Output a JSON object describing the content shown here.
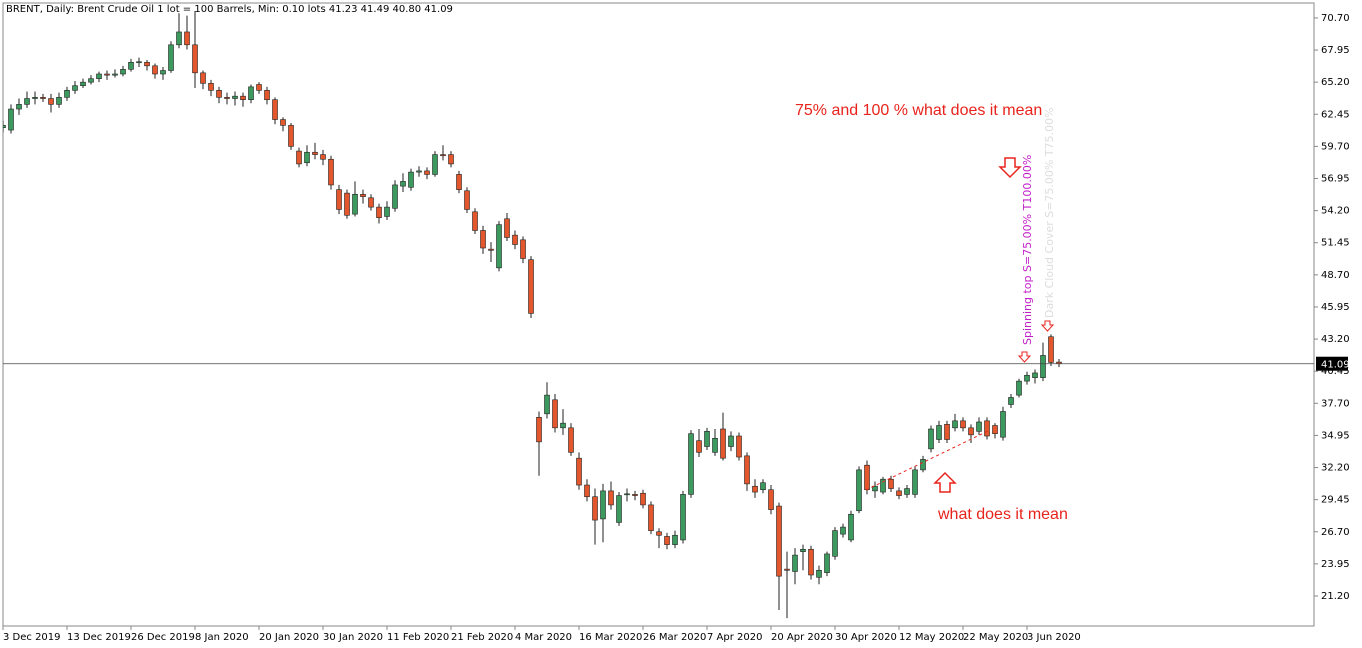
{
  "chart_data": {
    "type": "candlestick",
    "title": "BRENT, Daily:  Brent Crude Oil   1 lot = 100 Barrels, Min: 0.10 lots   41.23 41.49 40.80 41.09",
    "categories": [
      "3 Dec 2019",
      null,
      null,
      null,
      null,
      null,
      null,
      null,
      "13 Dec 2019",
      null,
      null,
      null,
      null,
      null,
      null,
      null,
      "26 Dec 2019",
      null,
      null,
      null,
      null,
      null,
      null,
      null,
      "8 Jan 2020",
      null,
      null,
      null,
      null,
      null,
      null,
      null,
      "20 Jan 2020",
      null,
      null,
      null,
      null,
      null,
      null,
      null,
      "30 Jan 2020",
      null,
      null,
      null,
      null,
      null,
      null,
      null,
      "11 Feb 2020",
      null,
      null,
      null,
      null,
      null,
      null,
      null,
      "21 Feb 2020",
      null,
      null,
      null,
      null,
      null,
      null,
      null,
      "4 Mar 2020",
      null,
      null,
      null,
      null,
      null,
      null,
      null,
      "16 Mar 2020",
      null,
      null,
      null,
      null,
      null,
      null,
      null,
      "26 Mar 2020",
      null,
      null,
      null,
      null,
      null,
      null,
      null,
      "7 Apr 2020",
      null,
      null,
      null,
      null,
      null,
      null,
      null,
      "20 Apr 2020",
      null,
      null,
      null,
      null,
      null,
      null,
      null,
      "30 Apr 2020",
      null,
      null,
      null,
      null,
      null,
      null,
      null,
      "12 May 2020",
      null,
      null,
      null,
      null,
      null,
      null,
      null,
      "22 May 2020",
      null,
      null,
      null,
      null,
      null,
      null,
      null,
      "3 Jun 2020",
      null,
      null,
      null,
      null
    ],
    "open": [
      61.3,
      61.1,
      62.9,
      63.3,
      63.8,
      63.9,
      63.8,
      63.3,
      63.9,
      64.5,
      64.9,
      65.2,
      65.5,
      65.9,
      65.8,
      65.9,
      66.3,
      66.9,
      66.9,
      66.6,
      65.9,
      66.2,
      68.4,
      69.5,
      68.4,
      66.0,
      65.1,
      64.5,
      63.9,
      63.8,
      64.0,
      63.7,
      65.0,
      64.5,
      63.7,
      62.0,
      61.5,
      59.3,
      58.3,
      59.2,
      59.0,
      58.6,
      56.0,
      55.7,
      53.9,
      55.6,
      55.3,
      54.5,
      53.7,
      54.4,
      56.3,
      56.2,
      57.5,
      57.6,
      57.3,
      59.0,
      59.0,
      57.3,
      55.9,
      54.1,
      52.5,
      50.9,
      49.3,
      53.5,
      52.1,
      51.7,
      50.0,
      36.5,
      36.8,
      38.0,
      35.6,
      35.6,
      33.0,
      30.7,
      29.7,
      27.8,
      30.2,
      27.5,
      29.9,
      29.9,
      30.0,
      29.0,
      26.7,
      26.3,
      25.6,
      26.0,
      29.9,
      34.5,
      34.0,
      33.5,
      35.5,
      34.0,
      34.9,
      33.2,
      30.6,
      30.3,
      30.3,
      28.9,
      23.5,
      23.3,
      25.0,
      25.2,
      22.8,
      23.2,
      24.6,
      26.5,
      26.0,
      28.5,
      32.4,
      30.2,
      30.1,
      31.2,
      30.2,
      29.9,
      29.9,
      32.0,
      33.8,
      34.6,
      35.9,
      35.6,
      36.2,
      35.6,
      35.3,
      36.2,
      35.8,
      34.8,
      37.6,
      38.4,
      39.6,
      39.9,
      39.9,
      43.4,
      41.23
    ],
    "high": [
      61.9,
      63.3,
      63.8,
      64.4,
      64.4,
      64.2,
      64.2,
      64.3,
      64.8,
      65.3,
      65.5,
      65.8,
      66.1,
      66.2,
      66.3,
      66.6,
      67.2,
      67.3,
      67.1,
      66.8,
      66.5,
      68.7,
      71.1,
      70.9,
      71.3,
      66.2,
      65.4,
      64.8,
      64.3,
      64.4,
      64.3,
      65.0,
      65.2,
      64.8,
      63.9,
      62.2,
      61.7,
      59.6,
      59.8,
      60.0,
      59.4,
      58.9,
      56.4,
      56.0,
      56.7,
      56.0,
      55.6,
      54.8,
      55.0,
      56.8,
      57.4,
      57.8,
      58.0,
      57.9,
      59.3,
      59.8,
      59.3,
      57.6,
      56.2,
      54.4,
      52.9,
      51.5,
      53.3,
      54.0,
      52.5,
      52.0,
      50.3,
      37.0,
      39.5,
      38.5,
      37.2,
      36.0,
      33.5,
      31.2,
      30.4,
      30.8,
      31.0,
      30.1,
      30.4,
      30.2,
      30.3,
      29.3,
      27.0,
      26.6,
      26.8,
      30.2,
      35.4,
      35.5,
      35.6,
      35.5,
      36.9,
      35.3,
      35.2,
      33.5,
      31.2,
      31.2,
      30.7,
      29.2,
      25.0,
      25.3,
      25.6,
      25.5,
      23.8,
      25.0,
      27.1,
      27.4,
      28.5,
      32.3,
      32.8,
      31.0,
      31.4,
      31.5,
      30.5,
      30.7,
      32.3,
      33.2,
      35.8,
      36.2,
      36.2,
      36.8,
      36.5,
      35.9,
      36.5,
      36.5,
      36.0,
      37.4,
      38.5,
      39.8,
      40.4,
      40.6,
      42.9,
      43.6,
      41.49
    ],
    "low": [
      60.9,
      60.8,
      62.4,
      63.0,
      63.3,
      63.5,
      62.6,
      63.0,
      63.6,
      64.2,
      64.7,
      65.0,
      65.2,
      65.4,
      65.6,
      65.7,
      66.1,
      66.5,
      66.2,
      65.5,
      65.4,
      66.0,
      68.1,
      68.0,
      64.7,
      64.6,
      64.0,
      63.4,
      63.3,
      63.2,
      63.1,
      63.4,
      64.2,
      63.3,
      61.6,
      61.0,
      59.4,
      57.9,
      58.0,
      58.6,
      58.1,
      56.0,
      53.9,
      53.5,
      53.7,
      54.8,
      54.2,
      53.1,
      53.4,
      54.1,
      55.8,
      55.9,
      57.1,
      56.9,
      57.1,
      58.5,
      57.9,
      55.7,
      54.0,
      52.2,
      50.5,
      49.8,
      49.0,
      51.6,
      50.9,
      49.7,
      45.0,
      31.5,
      36.4,
      35.2,
      35.0,
      33.2,
      30.3,
      29.3,
      25.6,
      25.8,
      28.6,
      27.2,
      29.3,
      29.4,
      28.7,
      26.5,
      25.3,
      25.2,
      25.3,
      25.7,
      29.6,
      33.1,
      33.7,
      33.2,
      32.8,
      33.6,
      32.8,
      30.2,
      29.6,
      30.0,
      28.2,
      20.0,
      19.3,
      22.2,
      23.4,
      22.6,
      22.2,
      22.9,
      24.3,
      26.2,
      25.8,
      28.3,
      29.9,
      29.6,
      29.9,
      30.1,
      29.5,
      29.6,
      29.6,
      31.8,
      33.5,
      34.3,
      34.3,
      35.3,
      35.3,
      34.3,
      35.0,
      34.6,
      34.7,
      34.5,
      37.3,
      38.2,
      39.3,
      39.4,
      39.6,
      40.9,
      40.8
    ],
    "close": [
      61.5,
      62.9,
      63.3,
      63.8,
      63.9,
      63.8,
      63.3,
      63.9,
      64.5,
      64.9,
      65.2,
      65.5,
      65.9,
      65.8,
      65.9,
      66.3,
      66.9,
      66.95,
      66.6,
      65.9,
      66.2,
      68.4,
      69.5,
      68.4,
      66.0,
      65.1,
      64.5,
      63.9,
      63.8,
      64.0,
      63.7,
      64.8,
      64.5,
      63.7,
      62.0,
      61.5,
      59.7,
      58.2,
      59.2,
      59.0,
      58.6,
      56.4,
      54.3,
      53.8,
      55.6,
      55.4,
      54.5,
      53.6,
      54.5,
      56.4,
      56.7,
      57.5,
      57.6,
      57.3,
      59.0,
      58.9,
      58.2,
      56.0,
      54.3,
      52.5,
      51.0,
      50.8,
      53.0,
      51.9,
      51.3,
      50.1,
      45.4,
      34.4,
      38.4,
      35.6,
      36.0,
      33.5,
      30.7,
      29.7,
      27.7,
      30.2,
      29.0,
      29.8,
      29.95,
      29.8,
      29.0,
      26.8,
      26.4,
      25.6,
      26.4,
      29.9,
      35.1,
      33.5,
      35.3,
      34.7,
      33.0,
      34.9,
      33.1,
      30.8,
      30.1,
      30.9,
      28.6,
      22.9,
      23.4,
      24.7,
      25.2,
      23.0,
      23.4,
      24.8,
      26.8,
      27.1,
      28.2,
      32.0,
      30.3,
      30.6,
      31.2,
      30.4,
      29.8,
      30.4,
      32.0,
      32.9,
      35.5,
      35.8,
      34.6,
      36.2,
      35.6,
      35.0,
      36.1,
      34.9,
      35.1,
      37.0,
      38.2,
      39.6,
      40.1,
      40.3,
      41.8,
      41.2,
      41.09
    ],
    "up_color": "#3c9a5e",
    "down_color": "#e4572c",
    "last_price": 41.09,
    "ylim": [
      18.63,
      71.98
    ],
    "yticks": [
      {
        "value": 70.7,
        "label": "70.70"
      },
      67.95,
      {
        "value": 65.2,
        "label": "65.20"
      },
      62.45,
      {
        "value": 59.7,
        "label": "59.70"
      },
      56.95,
      {
        "value": 54.2,
        "label": "54.20"
      },
      51.45,
      {
        "value": 48.7,
        "label": "48.70"
      },
      45.95,
      {
        "value": 43.2,
        "label": "43.20"
      },
      40.45,
      {
        "value": 37.7,
        "label": "37.70"
      },
      34.95,
      {
        "value": 32.2,
        "label": "32.20"
      },
      29.45,
      {
        "value": 26.7,
        "label": "26.70"
      },
      23.95,
      {
        "value": 21.2,
        "label": "21.20"
      }
    ],
    "annotations": [
      "75% and 100 % what does it mean",
      "what does it mean",
      "Spinning top S=75.00% T100.00%",
      "Dark Cloud Cover S=75.00% T75.00%"
    ]
  }
}
